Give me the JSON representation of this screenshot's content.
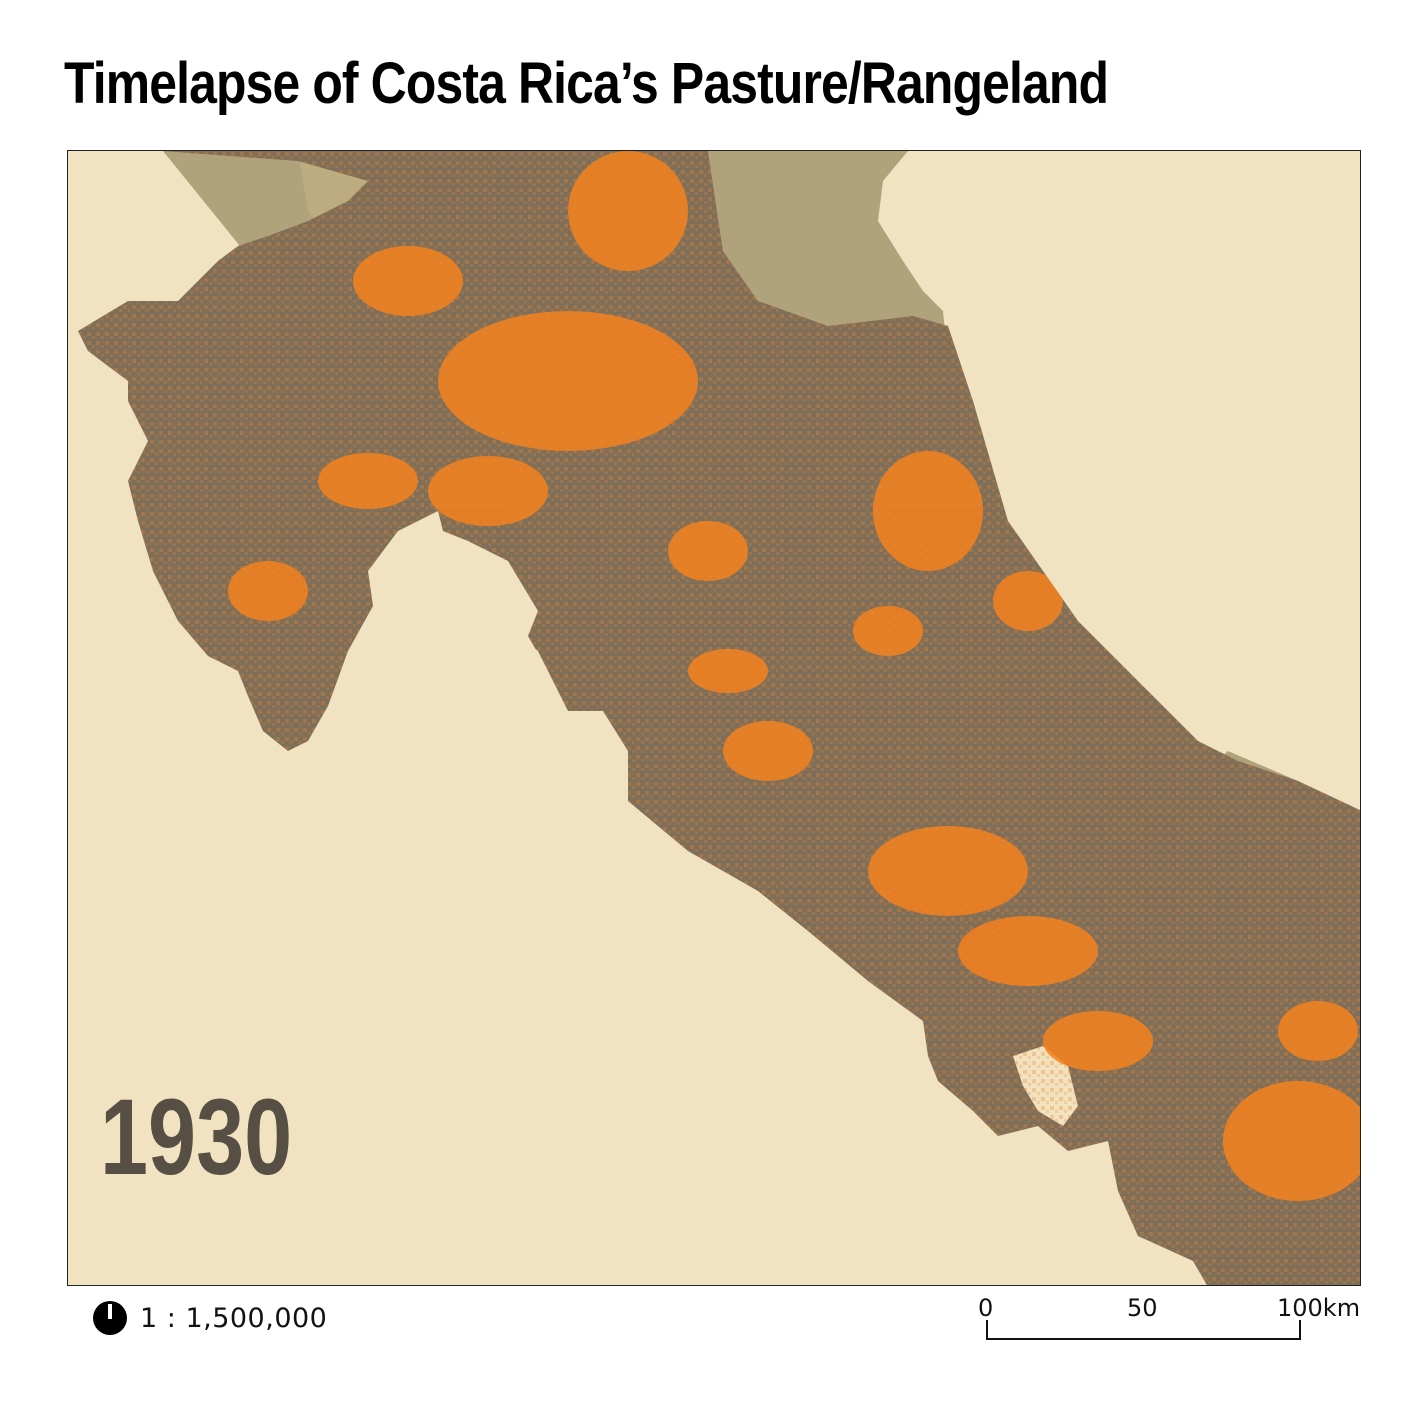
{
  "title": "Timelapse of Costa Rica’s Pasture/Rangeland",
  "map": {
    "year": "1930",
    "colors": {
      "ocean": "#f1e3c1",
      "costa_rica_land": "#7e6f5b",
      "neighbor_land": "#b0a27b",
      "lake": "#bcac80",
      "pasture": "#f5821f"
    }
  },
  "scale": {
    "ratio": "1 : 1,500,000",
    "ticks": [
      "0",
      "50",
      "100km"
    ]
  },
  "north_arrow_icon": "north-arrow-icon"
}
